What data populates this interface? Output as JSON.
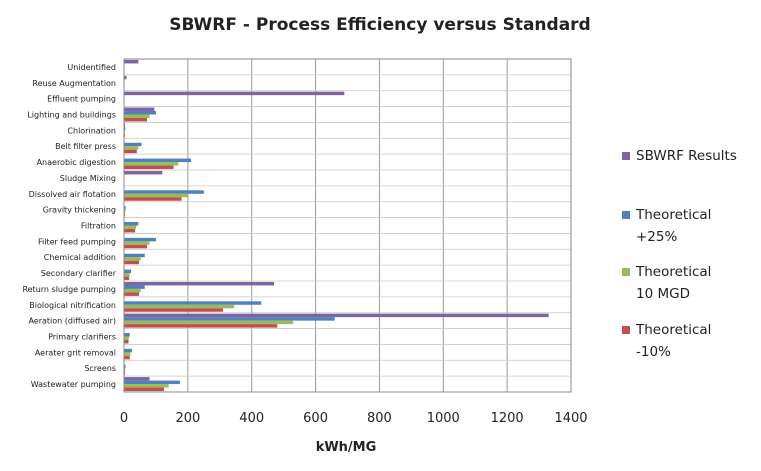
{
  "chart_data": {
    "type": "bar",
    "orientation": "horizontal",
    "title": "SBWRF - Process Efficiency versus Standard",
    "xlabel": "kWh/MG",
    "ylabel": "",
    "xlim": [
      0,
      1400
    ],
    "xticks": [
      "0",
      "200",
      "400",
      "600",
      "800",
      "1000",
      "1200",
      "1400"
    ],
    "legend_position": "right",
    "categories": [
      "Unidentified",
      "Reuse Augmentation",
      "Effluent pumping",
      "Lighting and buildings",
      "Chlorination",
      "Belt filter press",
      "Anaerobic digestion",
      "Sludge Mixing",
      "Dissolved air flotation",
      "Gravity thickening",
      "Filtration",
      "Filter feed pumping",
      "Chemical addition",
      "Secondary clarifier",
      "Return sludge pumping",
      "Biological nitrification",
      "Aeration (diffused air)",
      "Primary clarifiers",
      "Aerater grit removal",
      "Screens",
      "Wastewater pumping"
    ],
    "series": [
      {
        "name": "SBWRF Results",
        "legend_lines": [
          "SBWRF Results"
        ],
        "color": "#8064a2",
        "values": [
          45,
          8,
          690,
          95,
          3,
          0,
          0,
          120,
          0,
          0,
          0,
          0,
          0,
          0,
          470,
          0,
          1330,
          0,
          0,
          0,
          80
        ]
      },
      {
        "name": "Theoretical +25%",
        "legend_lines": [
          "Theoretical",
          "+25%"
        ],
        "color": "#4f81bd",
        "values": [
          0,
          0,
          0,
          100,
          4,
          55,
          210,
          0,
          250,
          5,
          45,
          100,
          65,
          22,
          65,
          430,
          660,
          18,
          25,
          5,
          175
        ]
      },
      {
        "name": "Theoretical 10 MGD",
        "legend_lines": [
          "Theoretical",
          "10 MGD"
        ],
        "color": "#9bbb59",
        "values": [
          0,
          0,
          0,
          80,
          3,
          45,
          170,
          0,
          200,
          4,
          38,
          80,
          52,
          18,
          52,
          345,
          530,
          15,
          20,
          4,
          140
        ]
      },
      {
        "name": "Theoretical -10%",
        "legend_lines": [
          "Theoretical",
          "-10%"
        ],
        "color": "#c0504d",
        "values": [
          0,
          0,
          0,
          72,
          3,
          40,
          155,
          0,
          180,
          3,
          35,
          72,
          47,
          16,
          47,
          310,
          480,
          14,
          18,
          3,
          125
        ]
      }
    ]
  }
}
